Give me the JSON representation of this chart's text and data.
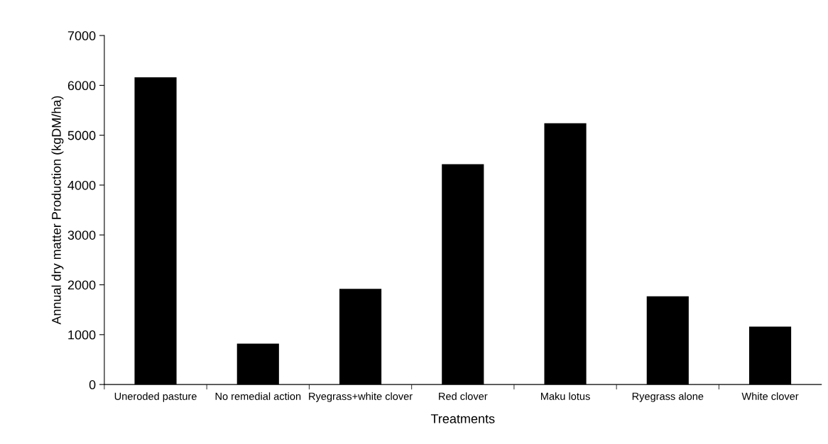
{
  "chart_data": {
    "type": "bar",
    "xlabel": "Treatments",
    "ylabel": "Annual dry matter Production (kgDM/ha)",
    "categories": [
      "Uneroded pasture",
      "No remedial action",
      "Ryegrass+white clover",
      "Red clover",
      "Maku lotus",
      "Ryegrass alone",
      "White clover"
    ],
    "values": [
      6160,
      820,
      1920,
      4420,
      5240,
      1770,
      1160
    ],
    "color": "#000000",
    "ylim": [
      0,
      7000
    ],
    "yticks": [
      0,
      1000,
      2000,
      3000,
      4000,
      5000,
      6000,
      7000
    ],
    "grid": false,
    "legend": false
  }
}
